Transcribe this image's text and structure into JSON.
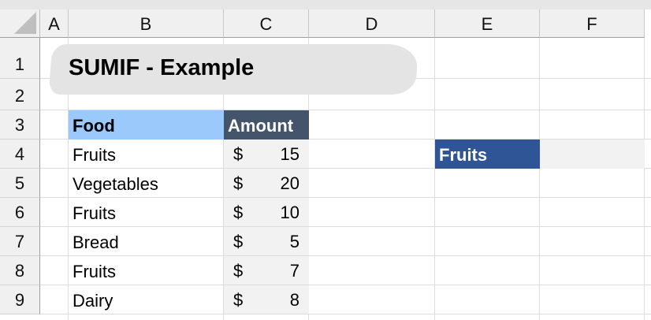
{
  "columns": [
    "A",
    "B",
    "C",
    "D",
    "E",
    "F"
  ],
  "rows": [
    "1",
    "2",
    "3",
    "4",
    "5",
    "6",
    "7",
    "8",
    "9"
  ],
  "title": "SUMIF - Example",
  "table": {
    "headers": {
      "food": "Food",
      "amount": "Amount"
    },
    "rows": [
      {
        "food": "Fruits",
        "currency": "$",
        "amount": "15"
      },
      {
        "food": "Vegetables",
        "currency": "$",
        "amount": "20"
      },
      {
        "food": "Fruits",
        "currency": "$",
        "amount": "10"
      },
      {
        "food": "Bread",
        "currency": "$",
        "amount": "5"
      },
      {
        "food": "Fruits",
        "currency": "$",
        "amount": "7"
      },
      {
        "food": "Dairy",
        "currency": "$",
        "amount": "8"
      }
    ]
  },
  "criteria": {
    "label": "Fruits",
    "result": ""
  },
  "colors": {
    "food_header": "#9bc9fb",
    "amount_header": "#44546a",
    "criteria": "#2f5597",
    "amount_fill": "#f2f2f2"
  }
}
